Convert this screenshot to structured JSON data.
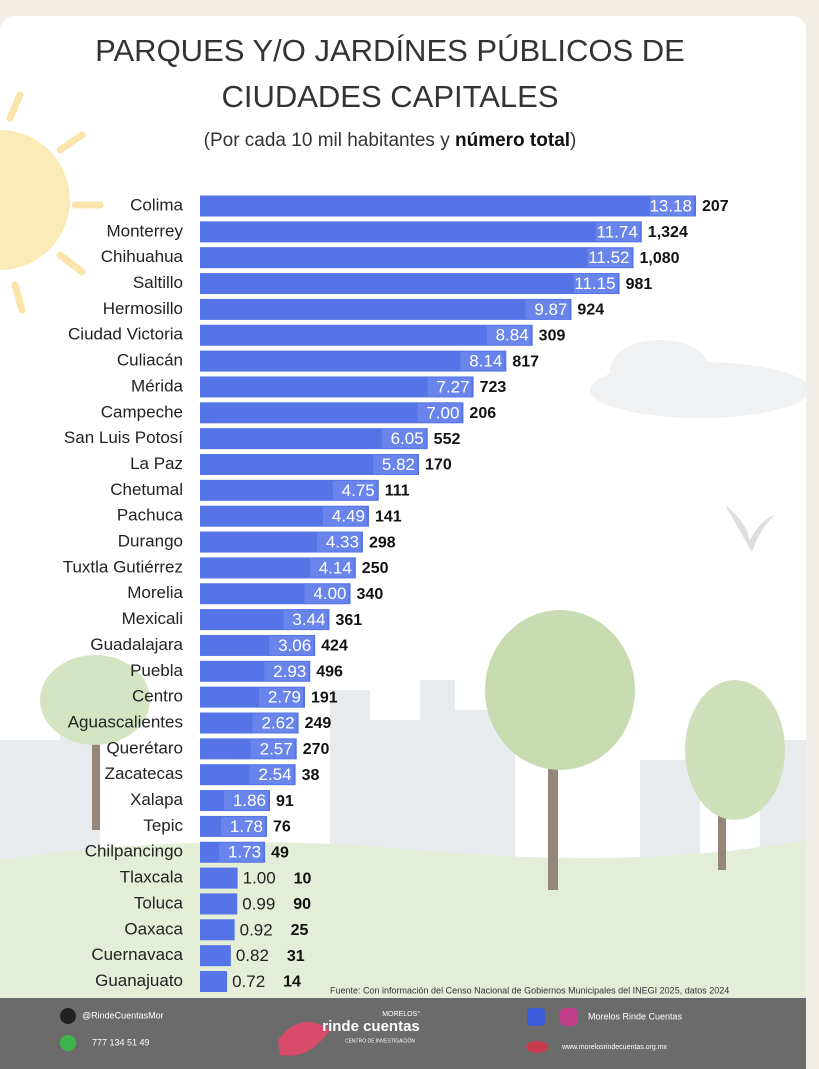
{
  "chart_data": {
    "type": "bar",
    "orientation": "horizontal",
    "title": [
      "PARQUES Y/O JARDÍNES PÚBLICOS DE",
      "CIUDADES CAPITALES"
    ],
    "subtitle": {
      "pre": "(Por cada 10 mil habitantes y",
      "bold": "número total",
      "post": ")"
    },
    "color": "#5574e8",
    "categories": [
      "Colima",
      "Monterrey",
      "Chihuahua",
      "Saltillo",
      "Hermosillo",
      "Ciudad Victoria",
      "Culiacán",
      "Mérida",
      "Campeche",
      "San Luis Potosí",
      "La Paz",
      "Chetumal",
      "Pachuca",
      "Durango",
      "Tuxtla Gutiérrez",
      "Morelia",
      "Mexicali",
      "Guadalajara",
      "Puebla",
      "Centro",
      "Aguascalientes",
      "Querétaro",
      "Zacatecas",
      "Xalapa",
      "Tepic",
      "Chilpancingo",
      "Tlaxcala",
      "Toluca",
      "Oaxaca",
      "Cuernavaca",
      "Guanajuato"
    ],
    "values": [
      13.18,
      11.74,
      11.52,
      11.15,
      9.87,
      8.84,
      8.14,
      7.27,
      7.0,
      6.05,
      5.82,
      4.75,
      4.49,
      4.33,
      4.14,
      4.0,
      3.44,
      3.06,
      2.93,
      2.79,
      2.62,
      2.57,
      2.54,
      1.86,
      1.78,
      1.73,
      1.0,
      0.99,
      0.92,
      0.82,
      0.72
    ],
    "value_labels": [
      "13.18",
      "11.74",
      "11.52",
      "11.15",
      "9.87",
      "8.84",
      "8.14",
      "7.27",
      "7.00",
      "6.05",
      "5.82",
      "4.75",
      "4.49",
      "4.33",
      "4.14",
      "4.00",
      "3.44",
      "3.06",
      "2.93",
      "2.79",
      "2.62",
      "2.57",
      "2.54",
      "1.86",
      "1.78",
      "1.73",
      "1.00",
      "0.99",
      "0.92",
      "0.82",
      "0.72"
    ],
    "totals": [
      207,
      1324,
      1080,
      981,
      924,
      309,
      817,
      723,
      206,
      552,
      170,
      111,
      141,
      298,
      250,
      340,
      361,
      424,
      496,
      191,
      249,
      270,
      38,
      91,
      76,
      49,
      10,
      90,
      25,
      31,
      14
    ],
    "total_labels": [
      "207",
      "1,324",
      "1,080",
      "981",
      "924",
      "309",
      "817",
      "723",
      "206",
      "552",
      "170",
      "111",
      "141",
      "298",
      "250",
      "340",
      "361",
      "424",
      "496",
      "191",
      "249",
      "270",
      "38",
      "91",
      "76",
      "49",
      "10",
      "90",
      "25",
      "31",
      "14"
    ],
    "source": "Fuente: Con información del Censo Nacional de Gobiernos Municipales del INEGI 2025, datos 2024"
  },
  "footer": {
    "twitter": "@RindeCuentasMor",
    "phone": "777 134 51 49",
    "logo_top": "MORELOS°",
    "logo_main": "rinde cuentas",
    "logo_sub": "CENTRO DE INVESTIGACIÓN",
    "social": "Morelos Rinde Cuentas",
    "web": "www.morelosrindecuentas.org.mx"
  }
}
